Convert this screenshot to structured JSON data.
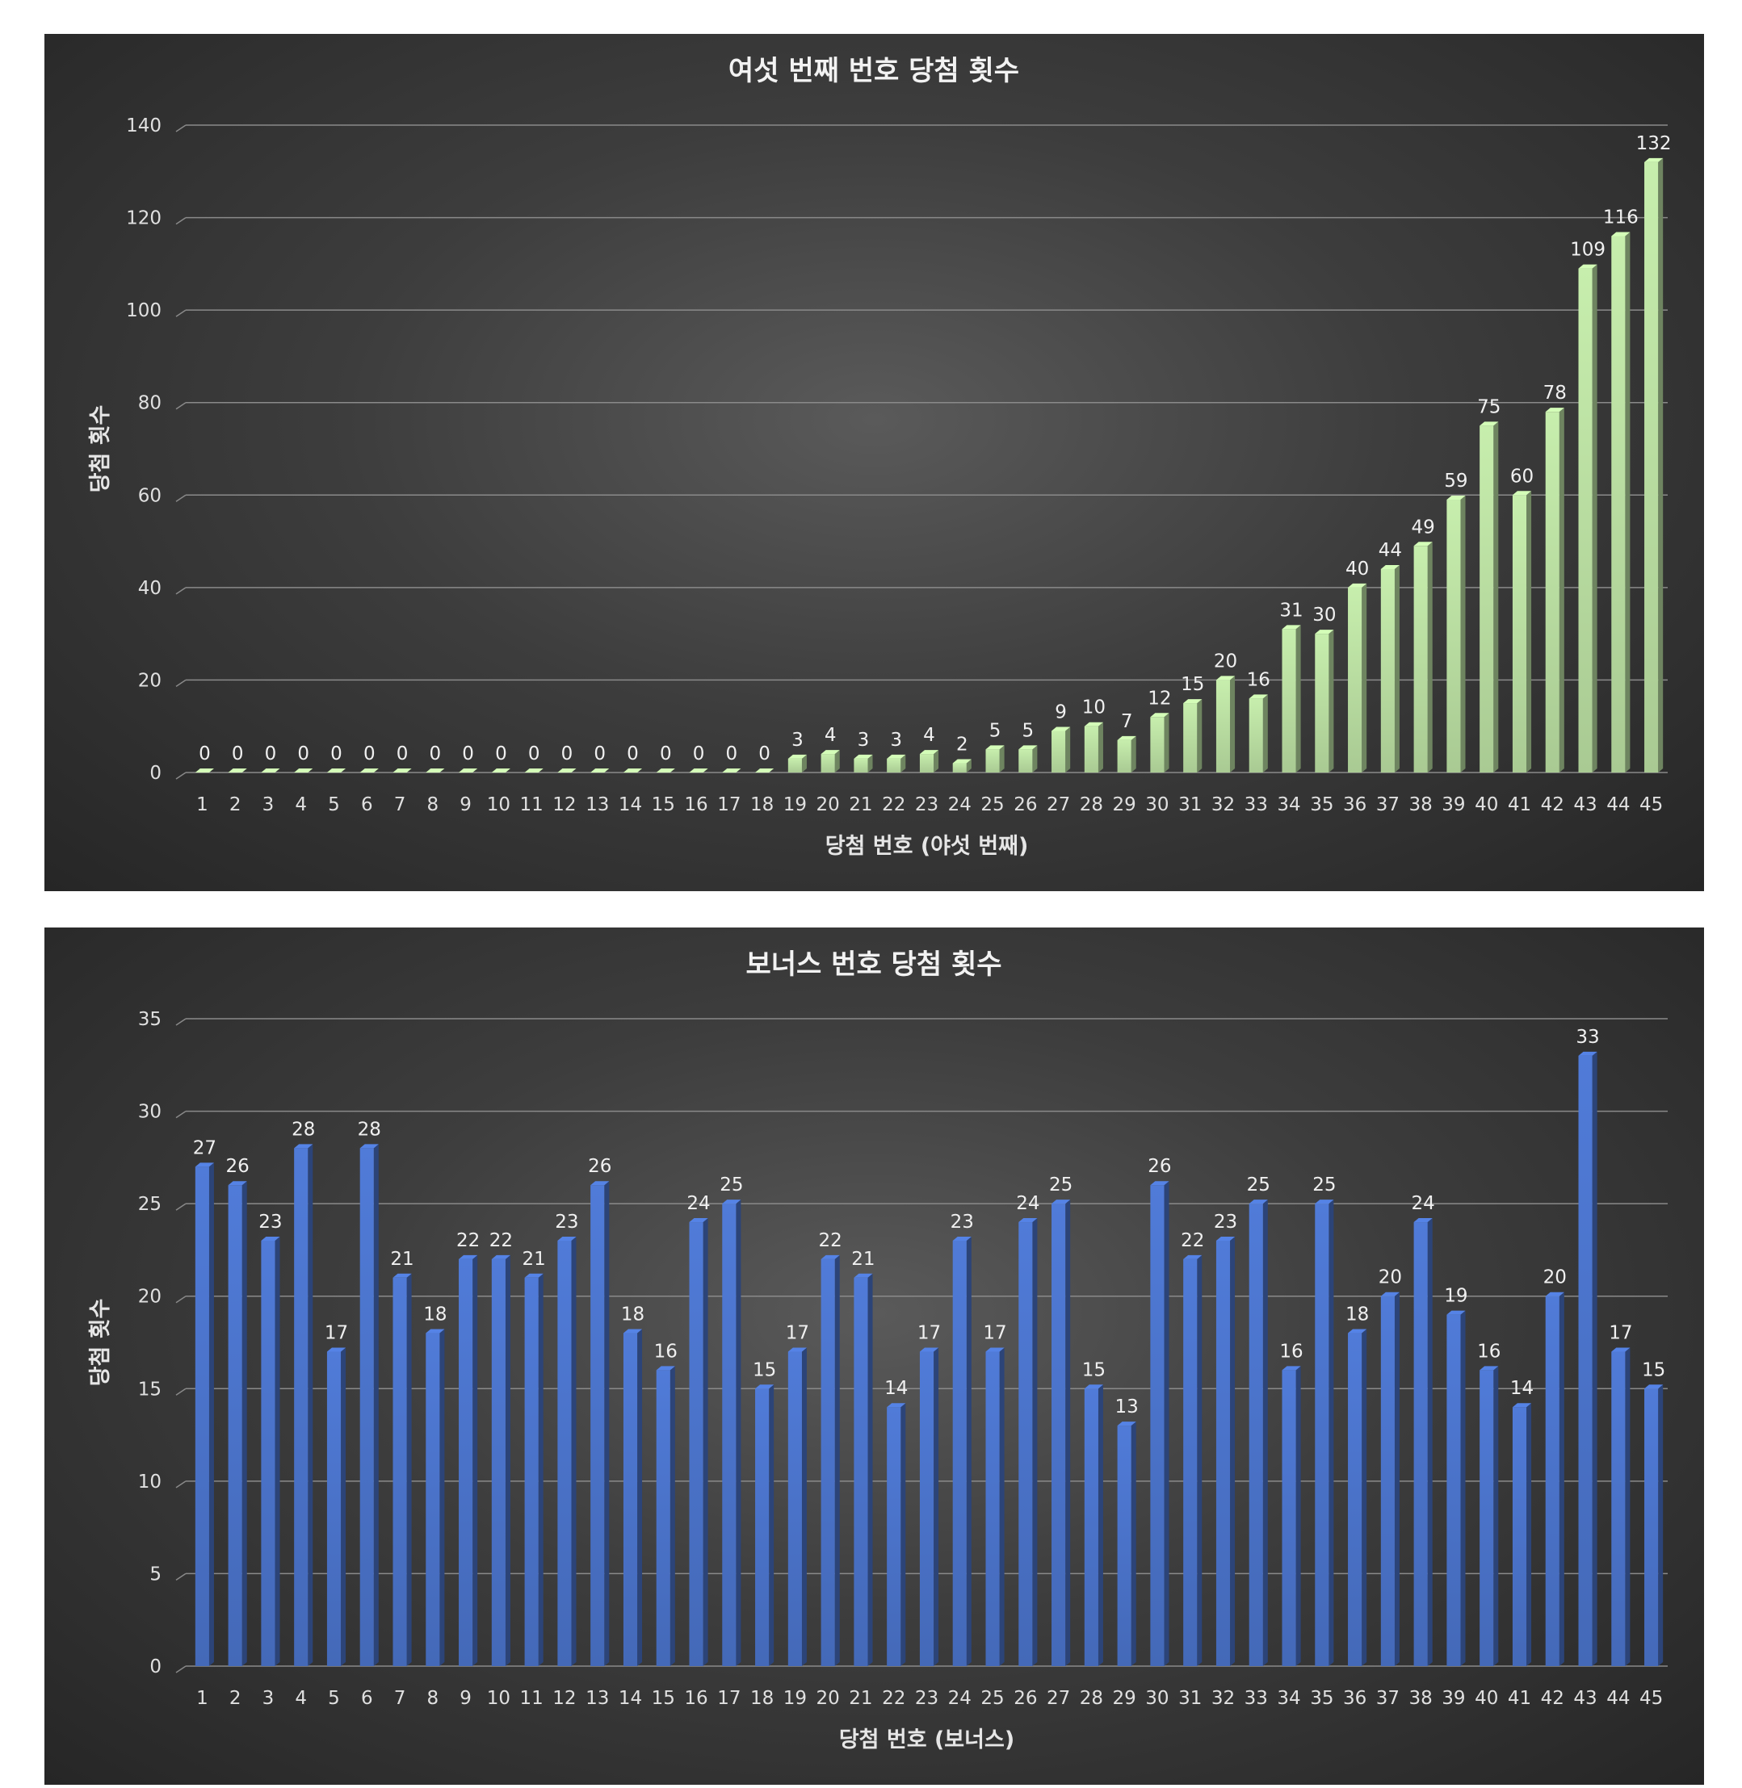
{
  "chart_data": [
    {
      "type": "bar",
      "title": "여섯 번째 번호 당첨 횟수",
      "xlabel": "당첨 번호 (야섯 번째)",
      "ylabel": "당첨 횟수",
      "ylim": [
        0,
        140
      ],
      "yticks": [
        0,
        20,
        40,
        60,
        80,
        100,
        120,
        140
      ],
      "grid": true,
      "bar_color": "#b8dca0",
      "categories": [
        "1",
        "2",
        "3",
        "4",
        "5",
        "6",
        "7",
        "8",
        "9",
        "10",
        "11",
        "12",
        "13",
        "14",
        "15",
        "16",
        "17",
        "18",
        "19",
        "20",
        "21",
        "22",
        "23",
        "24",
        "25",
        "26",
        "27",
        "28",
        "29",
        "30",
        "31",
        "32",
        "33",
        "34",
        "35",
        "36",
        "37",
        "38",
        "39",
        "40",
        "41",
        "42",
        "43",
        "44",
        "45"
      ],
      "values": [
        0,
        0,
        0,
        0,
        0,
        0,
        0,
        0,
        0,
        0,
        0,
        0,
        0,
        0,
        0,
        0,
        0,
        0,
        3,
        4,
        3,
        3,
        4,
        2,
        5,
        5,
        9,
        10,
        7,
        12,
        15,
        20,
        16,
        31,
        30,
        40,
        44,
        49,
        59,
        75,
        60,
        78,
        109,
        116,
        132
      ]
    },
    {
      "type": "bar",
      "title": "보너스 번호 당첨 횟수",
      "xlabel": "당첨 번호 (보너스)",
      "ylabel": "당첨 횟수",
      "ylim": [
        0,
        35
      ],
      "yticks": [
        0,
        5,
        10,
        15,
        20,
        25,
        30,
        35
      ],
      "grid": true,
      "bar_color": "#4a72c8",
      "categories": [
        "1",
        "2",
        "3",
        "4",
        "5",
        "6",
        "7",
        "8",
        "9",
        "10",
        "11",
        "12",
        "13",
        "14",
        "15",
        "16",
        "17",
        "18",
        "19",
        "20",
        "21",
        "22",
        "23",
        "24",
        "25",
        "26",
        "27",
        "28",
        "29",
        "30",
        "31",
        "32",
        "33",
        "34",
        "35",
        "36",
        "37",
        "38",
        "39",
        "40",
        "41",
        "42",
        "43",
        "44",
        "45"
      ],
      "values": [
        27,
        26,
        23,
        28,
        17,
        28,
        21,
        18,
        22,
        22,
        21,
        23,
        26,
        18,
        16,
        24,
        25,
        15,
        17,
        22,
        21,
        14,
        17,
        23,
        17,
        24,
        25,
        15,
        13,
        26,
        22,
        23,
        25,
        16,
        25,
        18,
        20,
        24,
        19,
        16,
        14,
        20,
        33,
        17,
        15
      ]
    }
  ]
}
